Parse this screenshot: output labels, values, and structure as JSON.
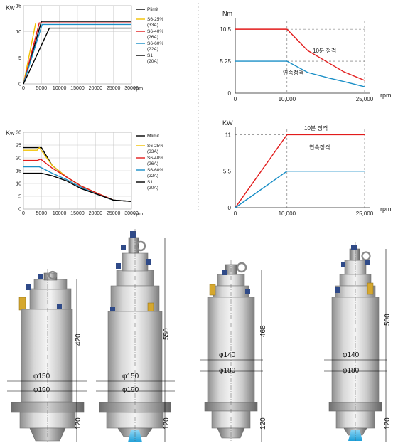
{
  "chart_data": [
    {
      "type": "line",
      "ylabel": "Kw",
      "xlabel": "rpm",
      "xlim": [
        0,
        30000
      ],
      "ylim": [
        0,
        15
      ],
      "x_ticks": [
        "0",
        "5000",
        "10000",
        "15000",
        "20000",
        "25000",
        "30000"
      ],
      "y_ticks": [
        "0",
        "5",
        "10",
        "15"
      ],
      "series": [
        {
          "name": "Plimit",
          "color": "#000000",
          "x": [
            0,
            5000,
            30000
          ],
          "y": [
            0,
            12,
            12
          ]
        },
        {
          "name": "S6-25%\n(33A)",
          "color": "#f2c200",
          "x": [
            0,
            3400
          ],
          "y": [
            0,
            11.7
          ]
        },
        {
          "name": "S6-40%\n(26A)",
          "color": "#e21b1b",
          "x": [
            0,
            4400,
            30000
          ],
          "y": [
            0,
            11.7,
            11.7
          ]
        },
        {
          "name": "S6-60%\n(22A)",
          "color": "#1a8fc7",
          "x": [
            0,
            5200,
            30000
          ],
          "y": [
            0,
            11.4,
            11.4
          ]
        },
        {
          "name": "S1\n(20A)",
          "color": "#000000",
          "x": [
            0,
            7200,
            30000
          ],
          "y": [
            0,
            10.7,
            10.7
          ]
        }
      ]
    },
    {
      "type": "line",
      "ylabel": "Nm",
      "xlabel": "rpm",
      "x_ticks": [
        "0",
        "10,000",
        "25,000"
      ],
      "y_ticks": [
        "0",
        "5.25",
        "10.5"
      ],
      "series": [
        {
          "name": "10분 정격",
          "color": "#e21b1b",
          "x": [
            0,
            10000,
            14000,
            18000,
            21000,
            25000
          ],
          "y": [
            10.5,
            10.5,
            7.0,
            5.0,
            3.5,
            2.1
          ]
        },
        {
          "name": "연속정격",
          "color": "#1a8fc7",
          "x": [
            0,
            10000,
            14000,
            18000,
            21000,
            25000
          ],
          "y": [
            5.25,
            5.25,
            3.4,
            2.5,
            1.9,
            1.05
          ]
        }
      ]
    },
    {
      "type": "line",
      "ylabel": "Kw",
      "xlabel": "rpm",
      "xlim": [
        0,
        30000
      ],
      "ylim": [
        0,
        30
      ],
      "x_ticks": [
        "0",
        "5000",
        "10000",
        "15000",
        "20000",
        "25000",
        "30000"
      ],
      "y_ticks": [
        "0",
        "5",
        "10",
        "15",
        "20",
        "25",
        "30"
      ],
      "series": [
        {
          "name": "Mlimit",
          "color": "#000000",
          "x": [
            0,
            5000,
            8000,
            12000,
            16000,
            20000,
            25000,
            30000
          ],
          "y": [
            24,
            24,
            17,
            12.5,
            9,
            6.5,
            3.5,
            3
          ]
        },
        {
          "name": "S6-25%\n(33A)",
          "color": "#f2c200",
          "x": [
            0,
            3800,
            4400,
            8000,
            12000,
            16000,
            20000,
            25000,
            30000
          ],
          "y": [
            23,
            23,
            24,
            17,
            12.5,
            9,
            6.5,
            3.5,
            3
          ]
        },
        {
          "name": "S6-40%\n(26A)",
          "color": "#e21b1b",
          "x": [
            0,
            3800,
            4800,
            8000,
            12000,
            16000,
            20000,
            25000,
            30000
          ],
          "y": [
            19,
            19,
            19.5,
            16,
            12.5,
            9,
            6.5,
            3.5,
            3
          ]
        },
        {
          "name": "S6-60%\n(22A)",
          "color": "#1a8fc7",
          "x": [
            0,
            4400,
            5200,
            8000,
            12000,
            16000,
            20000,
            25000,
            30000
          ],
          "y": [
            16.5,
            16.5,
            16,
            14,
            11.5,
            8.5,
            6,
            3.5,
            3
          ]
        },
        {
          "name": "S1\n(20A)",
          "color": "#000000",
          "x": [
            0,
            5000,
            8000,
            12000,
            16000,
            20000,
            25000,
            30000
          ],
          "y": [
            14,
            14,
            13,
            11,
            8,
            6,
            3.5,
            3
          ]
        }
      ]
    },
    {
      "type": "line",
      "ylabel": "KW",
      "xlabel": "rpm",
      "x_ticks": [
        "0",
        "10,000",
        "25,000"
      ],
      "y_ticks": [
        "0",
        "5.5",
        "11"
      ],
      "series": [
        {
          "name": "10분 정격",
          "color": "#e21b1b",
          "x": [
            0,
            10000,
            25000
          ],
          "y": [
            0,
            11,
            11
          ]
        },
        {
          "name": "연속정격",
          "color": "#1a8fc7",
          "x": [
            0,
            10000,
            25000
          ],
          "y": [
            0,
            5.5,
            5.5
          ]
        }
      ]
    }
  ],
  "spindles": [
    {
      "height_top": "420",
      "dia_upper": "φ150",
      "dia_lower": "φ190",
      "height_bottom": "120"
    },
    {
      "height_top": "550",
      "dia_upper": "φ150",
      "dia_lower": "φ190",
      "height_bottom": "120"
    },
    {
      "height_top": "468",
      "dia_upper": "φ140",
      "dia_lower": "φ180",
      "height_bottom": "120"
    },
    {
      "height_top": "500",
      "dia_upper": "φ140",
      "dia_lower": "φ180",
      "height_bottom": "120"
    }
  ],
  "colors": {
    "red": "#e21b1b",
    "blue": "#1a8fc7",
    "yellow": "#f2c200",
    "black": "#000000"
  }
}
